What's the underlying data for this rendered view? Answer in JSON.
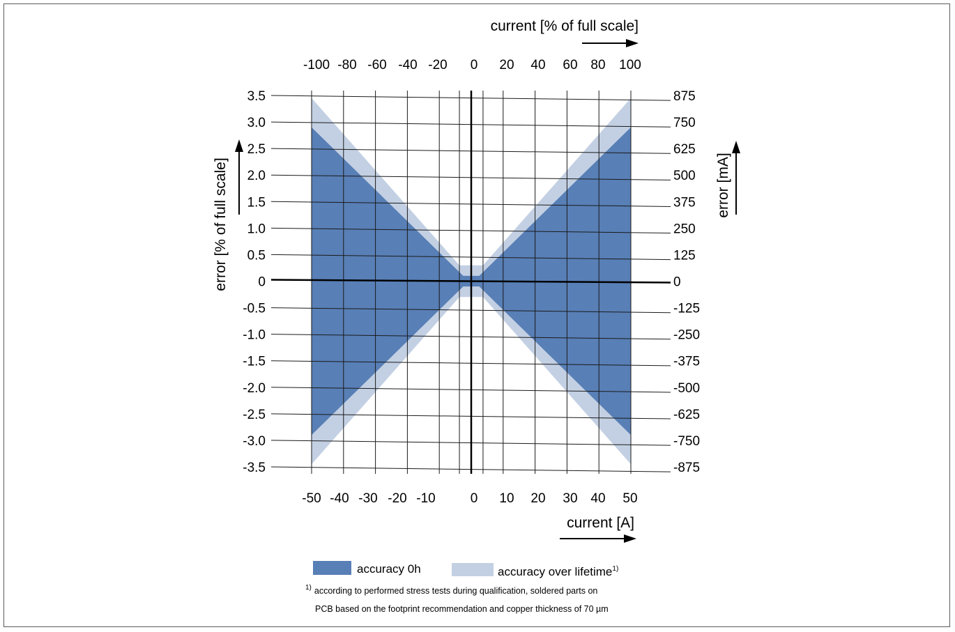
{
  "chart_data": {
    "type": "area",
    "top_axis": {
      "label": "current [% of full scale]",
      "ticks": [
        -100,
        -80,
        -60,
        -40,
        -20,
        0,
        20,
        40,
        60,
        80,
        100
      ],
      "tick_labels": [
        "-100",
        "-80",
        "-60",
        "-40",
        "-20",
        "0",
        "20",
        "40",
        "60",
        "80",
        "100"
      ]
    },
    "bottom_axis": {
      "label": "current [A]",
      "ticks": [
        -50,
        -40,
        -30,
        -20,
        -10,
        0,
        10,
        20,
        30,
        40,
        50
      ],
      "tick_labels": [
        "-50",
        "-40",
        "-30",
        "-20",
        "-10",
        "0",
        "10",
        "20",
        "30",
        "40",
        "50"
      ],
      "range": [
        -50,
        50
      ]
    },
    "left_axis": {
      "label": "error [% of full scale]",
      "ticks": [
        3.5,
        3.0,
        2.5,
        2.0,
        1.5,
        1.0,
        0.5,
        0,
        -0.5,
        -1.0,
        -1.5,
        -2.0,
        -2.5,
        -3.0,
        -3.5
      ],
      "tick_labels": [
        "3.5",
        "3.0",
        "2.5",
        "2.0",
        "1.5",
        "1.0",
        "0.5",
        "0",
        "-0.5",
        "-1.0",
        "-1.5",
        "-2.0",
        "-2.5",
        "-3.0",
        "-3.5"
      ],
      "range": [
        -3.5,
        3.5
      ]
    },
    "right_axis": {
      "label": "error [mA]",
      "tick_labels": [
        "875",
        "750",
        "625",
        "500",
        "375",
        "250",
        "125",
        "0",
        "-125",
        "-250",
        "-375",
        "-500",
        "-625",
        "-750",
        "-875"
      ]
    },
    "grid": true,
    "series": [
      {
        "name": "accuracy over lifetime",
        "name_sup": "1)",
        "color": "#c3d0e3",
        "upper": [
          [
            -50,
            3.45
          ],
          [
            -3.7,
            0.3
          ],
          [
            3.7,
            0.3
          ],
          [
            50,
            3.45
          ]
        ],
        "lower": [
          [
            -50,
            -3.45
          ],
          [
            -3.7,
            -0.3
          ],
          [
            3.7,
            -0.3
          ],
          [
            50,
            -3.45
          ]
        ]
      },
      {
        "name": "accuracy 0h",
        "color": "#587fb6",
        "upper": [
          [
            -50,
            2.9
          ],
          [
            -2.5,
            0.1
          ],
          [
            2.5,
            0.1
          ],
          [
            50,
            2.9
          ]
        ],
        "lower": [
          [
            -50,
            -2.9
          ],
          [
            -2.5,
            -0.1
          ],
          [
            2.5,
            -0.1
          ],
          [
            50,
            -2.9
          ]
        ]
      }
    ],
    "legend_position": "bottom",
    "footnote": {
      "marker": "1)",
      "line1": "according to performed stress tests during qualification, soldered parts on",
      "line2": "PCB based on the footprint recommendation and copper thickness of 70 µm"
    }
  }
}
